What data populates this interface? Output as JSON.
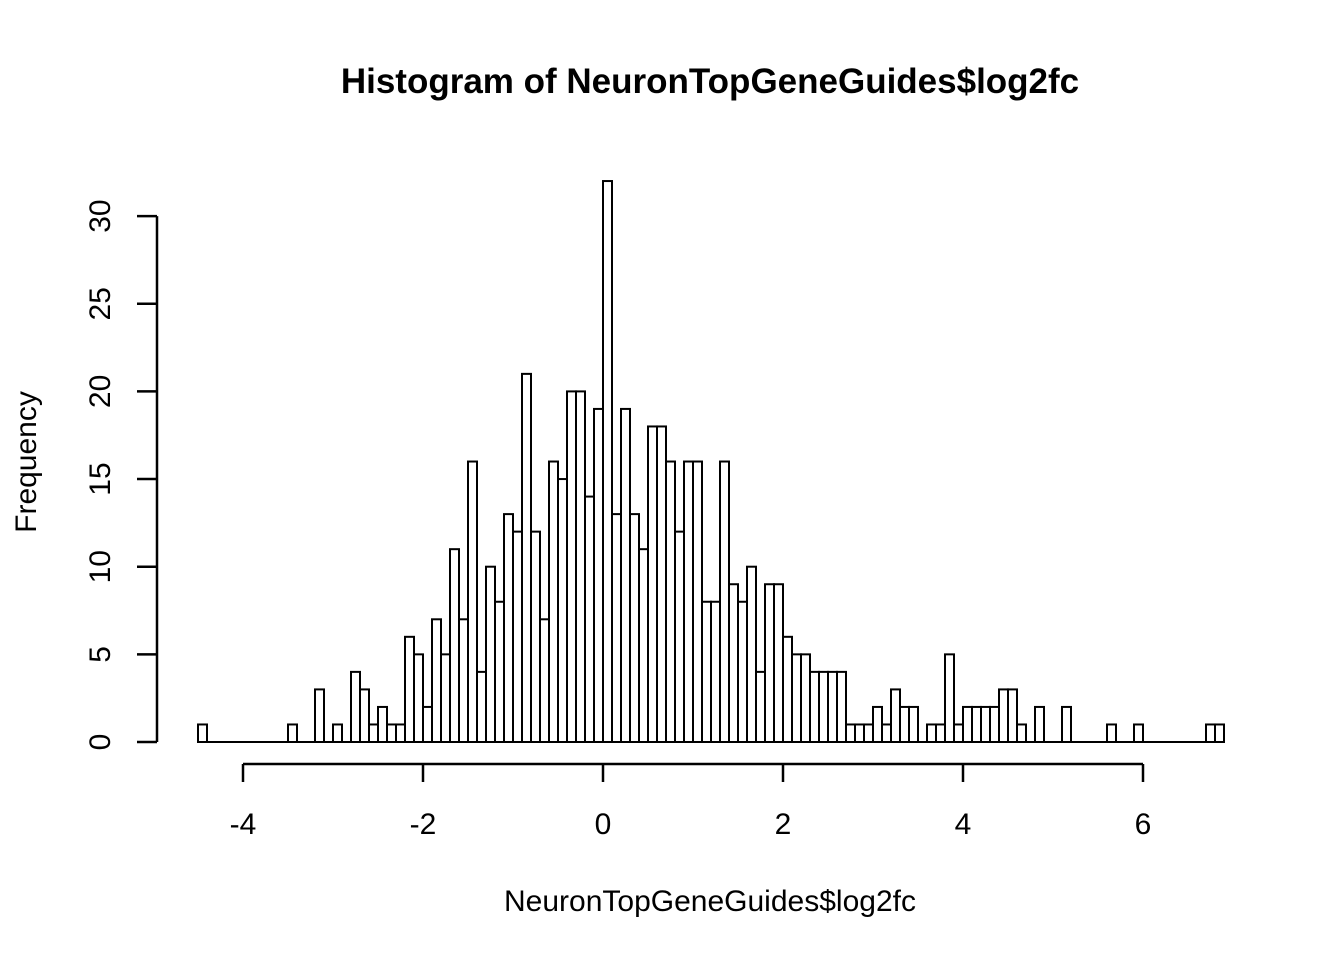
{
  "chart_data": {
    "type": "bar",
    "title": "Histogram of NeuronTopGeneGuides$log2fc",
    "xlabel": "NeuronTopGeneGuides$log2fc",
    "ylabel": "Frequency",
    "bin_width": 0.1,
    "bin_start": -4.5,
    "values": [
      1,
      0,
      0,
      0,
      0,
      0,
      0,
      0,
      0,
      0,
      1,
      0,
      0,
      3,
      0,
      1,
      0,
      4,
      3,
      1,
      2,
      1,
      1,
      6,
      5,
      2,
      7,
      5,
      11,
      7,
      16,
      4,
      10,
      8,
      13,
      12,
      21,
      12,
      7,
      16,
      15,
      20,
      20,
      14,
      19,
      32,
      13,
      19,
      13,
      11,
      18,
      18,
      16,
      12,
      16,
      16,
      8,
      8,
      16,
      9,
      8,
      10,
      4,
      9,
      9,
      6,
      5,
      5,
      4,
      4,
      4,
      4,
      1,
      1,
      1,
      2,
      1,
      3,
      2,
      2,
      0,
      1,
      1,
      5,
      1,
      2,
      2,
      2,
      2,
      3,
      3,
      1,
      0,
      2,
      0,
      0,
      2,
      0,
      0,
      0,
      0,
      1,
      0,
      0,
      1,
      0,
      0,
      0,
      0,
      0,
      0,
      0,
      1,
      1
    ],
    "xlim": [
      -4.5,
      6.9
    ],
    "ylim": [
      0,
      32
    ],
    "x_ticks": [
      -4,
      -2,
      0,
      2,
      4,
      6
    ],
    "x_tick_labels": [
      "-4",
      "-2",
      "0",
      "2",
      "4",
      "6"
    ],
    "y_ticks": [
      0,
      5,
      10,
      15,
      20,
      25,
      30
    ],
    "y_tick_labels": [
      "0",
      "5",
      "10",
      "15",
      "20",
      "25",
      "30"
    ],
    "grid": false,
    "bar_fill": "#ffffff",
    "bar_stroke": "#000000"
  }
}
